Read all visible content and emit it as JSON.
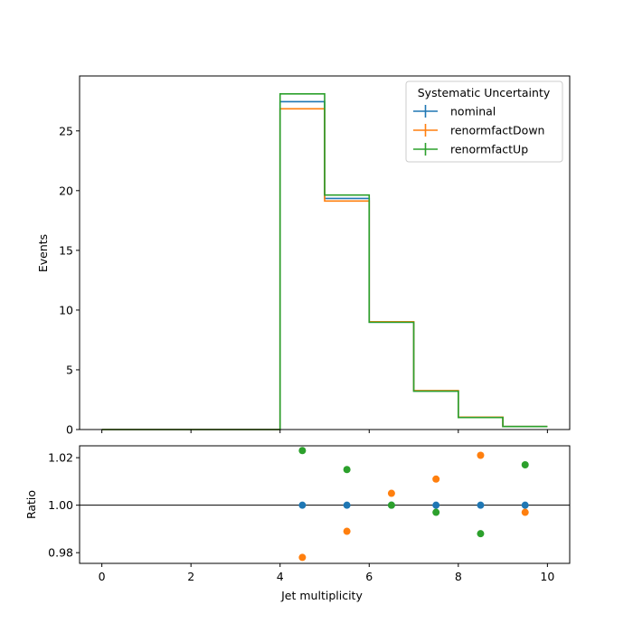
{
  "chart_data": [
    {
      "type": "line",
      "drawstyle": "step",
      "ylabel": "Events",
      "xlim": [
        -0.5,
        10.5
      ],
      "ylim": [
        0,
        29.6
      ],
      "yticks": [
        0,
        5,
        10,
        15,
        20,
        25
      ],
      "bin_edges": [
        0,
        1,
        2,
        3,
        4,
        5,
        6,
        7,
        8,
        9,
        10
      ],
      "legend": {
        "title": "Systematic Uncertainty",
        "placement": "top-right"
      },
      "series": [
        {
          "name": "nominal",
          "color": "#1f77b4",
          "values": [
            0,
            0,
            0,
            0,
            27.45,
            19.35,
            8.98,
            3.22,
            1.02,
            0.25
          ]
        },
        {
          "name": "renormfactDown",
          "color": "#ff7f0e",
          "values": [
            0,
            0,
            0,
            0,
            26.85,
            19.13,
            9.02,
            3.26,
            1.04,
            0.25
          ]
        },
        {
          "name": "renormfactUp",
          "color": "#2ca02c",
          "values": [
            0,
            0,
            0,
            0,
            28.1,
            19.63,
            8.98,
            3.21,
            1.01,
            0.25
          ]
        }
      ]
    },
    {
      "type": "scatter",
      "xlabel": "Jet multiplicity",
      "ylabel": "Ratio",
      "xlim": [
        -0.5,
        10.5
      ],
      "ylim": [
        0.9755,
        1.025
      ],
      "xticks": [
        0,
        2,
        4,
        6,
        8,
        10
      ],
      "yticks": [
        0.98,
        1.0,
        1.02
      ],
      "ytick_labels": [
        "0.98",
        "1.00",
        "1.02"
      ],
      "reference_line": 1.0,
      "series": [
        {
          "name": "nominal",
          "color": "#1f77b4",
          "x": [
            4.5,
            5.5,
            6.5,
            7.5,
            8.5,
            9.5
          ],
          "y": [
            1.0,
            1.0,
            1.0,
            1.0,
            1.0,
            1.0
          ]
        },
        {
          "name": "renormfactDown",
          "color": "#ff7f0e",
          "x": [
            4.5,
            5.5,
            6.5,
            7.5,
            8.5,
            9.5
          ],
          "y": [
            0.978,
            0.989,
            1.005,
            1.011,
            1.021,
            0.997
          ]
        },
        {
          "name": "renormfactUp",
          "color": "#2ca02c",
          "x": [
            4.5,
            5.5,
            6.5,
            7.5,
            8.5,
            9.5
          ],
          "y": [
            1.023,
            1.015,
            1.0,
            0.997,
            0.988,
            1.017
          ]
        }
      ]
    }
  ]
}
